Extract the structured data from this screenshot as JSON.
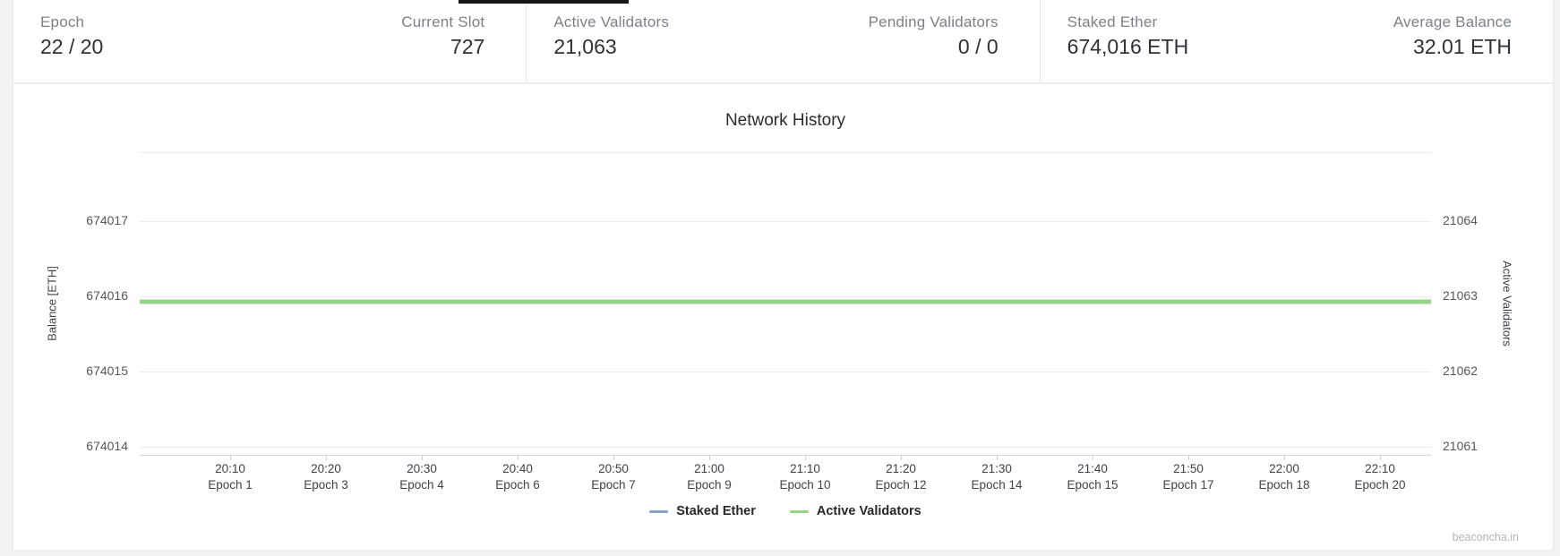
{
  "page": {
    "watermark": "beaconcha.in"
  },
  "stats": {
    "groups": [
      {
        "cells": [
          {
            "label": "Epoch",
            "value": "22 / 20",
            "align": "left"
          },
          {
            "label": "Current Slot",
            "value": "727",
            "align": "right"
          }
        ]
      },
      {
        "cells": [
          {
            "label": "Active Validators",
            "value": "21,063",
            "align": "left"
          },
          {
            "label": "Pending Validators",
            "value": "0 / 0",
            "align": "right"
          }
        ]
      },
      {
        "cells": [
          {
            "label": "Staked Ether",
            "value": "674,016 ETH",
            "align": "left"
          },
          {
            "label": "Average Balance",
            "value": "32.01 ETH",
            "align": "right"
          }
        ]
      }
    ]
  },
  "chart_data": {
    "type": "line",
    "title": "Network History",
    "grid": true,
    "legend_position": "bottom",
    "left_axis": {
      "title": "Balance [ETH]",
      "ticks": [
        674017,
        674016,
        674015,
        674014
      ],
      "range": [
        674013.8,
        674018
      ]
    },
    "right_axis": {
      "title": "Active Validators",
      "ticks": [
        21064,
        21063,
        21062,
        21061
      ],
      "range": [
        21060.8,
        21065
      ]
    },
    "x_ticks": [
      {
        "time": "20:10",
        "epoch": "Epoch 1"
      },
      {
        "time": "20:20",
        "epoch": "Epoch 3"
      },
      {
        "time": "20:30",
        "epoch": "Epoch 4"
      },
      {
        "time": "20:40",
        "epoch": "Epoch 6"
      },
      {
        "time": "20:50",
        "epoch": "Epoch 7"
      },
      {
        "time": "21:00",
        "epoch": "Epoch 9"
      },
      {
        "time": "21:10",
        "epoch": "Epoch 10"
      },
      {
        "time": "21:20",
        "epoch": "Epoch 12"
      },
      {
        "time": "21:30",
        "epoch": "Epoch 14"
      },
      {
        "time": "21:40",
        "epoch": "Epoch 15"
      },
      {
        "time": "21:50",
        "epoch": "Epoch 17"
      },
      {
        "time": "22:00",
        "epoch": "Epoch 18"
      },
      {
        "time": "22:10",
        "epoch": "Epoch 20"
      }
    ],
    "series": [
      {
        "name": "Staked Ether",
        "color": "#86a4c4",
        "axis": "left",
        "values": [
          674016,
          674016,
          674016,
          674016,
          674016,
          674016,
          674016,
          674016,
          674016,
          674016,
          674016,
          674016,
          674016
        ]
      },
      {
        "name": "Active Validators",
        "color": "#96d587",
        "axis": "right",
        "values": [
          21063,
          21063,
          21063,
          21063,
          21063,
          21063,
          21063,
          21063,
          21063,
          21063,
          21063,
          21063,
          21063
        ]
      }
    ]
  }
}
